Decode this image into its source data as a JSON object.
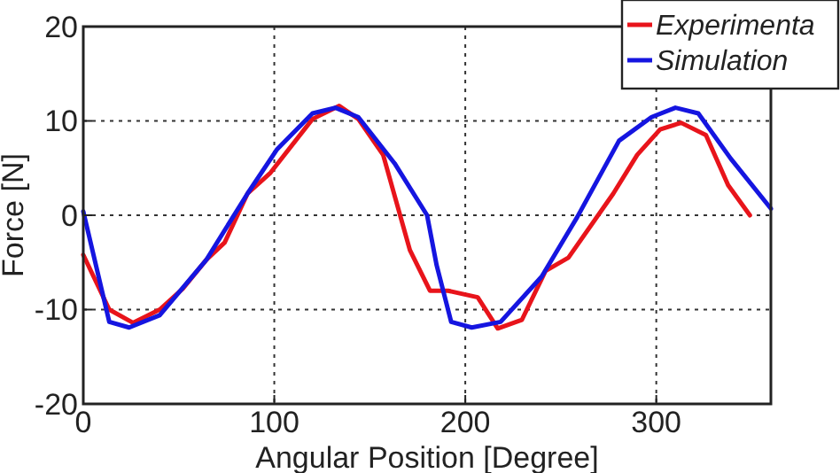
{
  "chart_data": {
    "type": "line",
    "xlabel": "Angular Position [Degree]",
    "ylabel": "Force [N]",
    "xlim": [
      0,
      360
    ],
    "xticks": [
      0,
      100,
      200,
      300
    ],
    "ylim": [
      -20,
      20
    ],
    "yticks": [
      -20,
      -10,
      0,
      10,
      20
    ],
    "grid": true,
    "legend": "top right",
    "line_style": "solid",
    "marker": "none",
    "series": [
      {
        "name": "Experimenta",
        "color": "#e8141b",
        "x": [
          0,
          13.6,
          26,
          40,
          52,
          64.5,
          74,
          86,
          98,
          120,
          134,
          144,
          157,
          171,
          181.5,
          191,
          206.5,
          217,
          229.6,
          242,
          254,
          277.5,
          290,
          302,
          313,
          326,
          337.6,
          349
        ],
        "values": [
          -4.2,
          -10,
          -11.4,
          -10,
          -7.8,
          -4.7,
          -2.9,
          2.3,
          4.5,
          10.2,
          11.6,
          10.2,
          6.4,
          -3.7,
          -8,
          -8,
          -8.7,
          -12,
          -11.1,
          -5.9,
          -4.5,
          2.3,
          6.4,
          9.1,
          9.8,
          8.5,
          3.2,
          0
        ]
      },
      {
        "name": "Simulation",
        "color": "#1515e0",
        "x": [
          0,
          13.6,
          24,
          40,
          64.5,
          86,
          101.5,
          120,
          132,
          144,
          163,
          180,
          185,
          192.6,
          203.4,
          218.5,
          240,
          258.6,
          280.5,
          297.5,
          310,
          322,
          339,
          360
        ],
        "values": [
          0.4,
          -11.3,
          -11.9,
          -10.6,
          -4.7,
          2.3,
          7,
          10.8,
          11.4,
          10.4,
          5.5,
          0,
          -5.3,
          -11.3,
          -11.9,
          -11.3,
          -6.5,
          -0.2,
          7.9,
          10.4,
          11.4,
          10.8,
          6,
          0.7
        ]
      }
    ]
  }
}
